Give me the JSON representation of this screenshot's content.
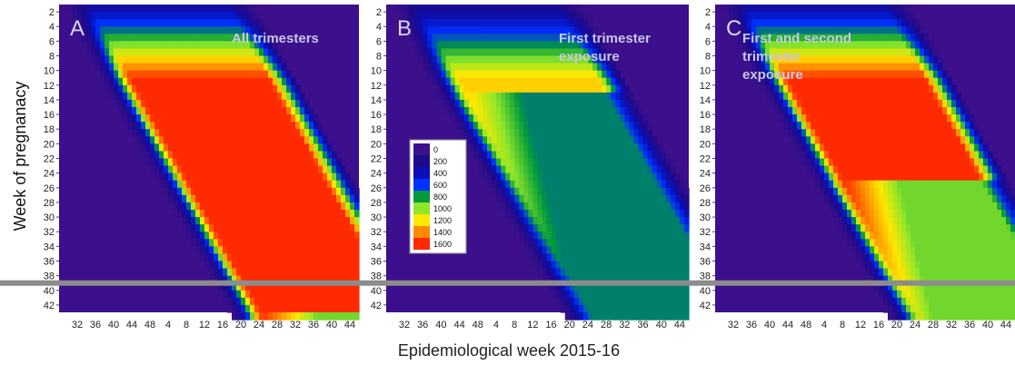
{
  "figure": {
    "ylabel": "Week of pregnanacy",
    "xlabel": "Epidemiological week 2015-16"
  },
  "legend": {
    "levels": [
      "0",
      "200",
      "400",
      "600",
      "800",
      "1000",
      "1200",
      "1400",
      "1600"
    ],
    "colors": [
      "#3c0f8c",
      "#1d0a8a",
      "#0a0fb8",
      "#0032ff",
      "#009a3a",
      "#8ee62a",
      "#ffe800",
      "#ff8a00",
      "#ff2a00"
    ]
  },
  "colors": {
    "background": "#3c0f8c",
    "threshold_line": "#8c8c8c",
    "panel_title_text": "#c8c8e6"
  },
  "chart_data": [
    {
      "type": "heatmap",
      "panel_letter": "A",
      "title": [
        "All trimesters"
      ],
      "ylabel": "Week of pregnanacy",
      "xlabel": "Epidemiological week 2015-16",
      "y_ticks": [
        2,
        4,
        6,
        8,
        10,
        12,
        14,
        16,
        18,
        20,
        22,
        24,
        26,
        28,
        30,
        32,
        34,
        36,
        38,
        40,
        42
      ],
      "y_range": [
        1,
        43
      ],
      "x_ticks": [
        "32",
        "36",
        "40",
        "44",
        "48",
        "4",
        "8",
        "12",
        "16",
        "20",
        "24",
        "28",
        "32",
        "36",
        "40",
        "44"
      ],
      "threshold_pregnancy_week": 39,
      "exposure_window_weeks": [
        1,
        42
      ],
      "epi_peak_week_index": 22,
      "max_value": 1600
    },
    {
      "type": "heatmap",
      "panel_letter": "B",
      "title": [
        "First trimester",
        "exposure"
      ],
      "y_ticks": [
        2,
        4,
        6,
        8,
        10,
        12,
        14,
        16,
        18,
        20,
        22,
        24,
        26,
        28,
        30,
        32,
        34,
        36,
        38,
        40,
        42
      ],
      "y_range": [
        1,
        43
      ],
      "x_ticks": [
        "32",
        "36",
        "40",
        "44",
        "48",
        "4",
        "8",
        "12",
        "16",
        "20",
        "24",
        "28",
        "32",
        "36",
        "40",
        "44"
      ],
      "threshold_pregnancy_week": 39,
      "exposure_window_weeks": [
        1,
        12
      ],
      "epi_peak_week_index": 22,
      "max_value": 1250
    },
    {
      "type": "heatmap",
      "panel_letter": "C",
      "title": [
        "First and second",
        "trimester",
        "exposure"
      ],
      "y_ticks": [
        2,
        4,
        6,
        8,
        10,
        12,
        14,
        16,
        18,
        20,
        22,
        24,
        26,
        28,
        30,
        32,
        34,
        36,
        38,
        40,
        42
      ],
      "y_range": [
        1,
        43
      ],
      "x_ticks": [
        "32",
        "36",
        "40",
        "44",
        "48",
        "4",
        "8",
        "12",
        "16",
        "20",
        "24",
        "28",
        "32",
        "36",
        "40",
        "44"
      ],
      "threshold_pregnancy_week": 39,
      "exposure_window_weeks": [
        1,
        24
      ],
      "epi_peak_week_index": 22,
      "max_value": 1600
    }
  ]
}
